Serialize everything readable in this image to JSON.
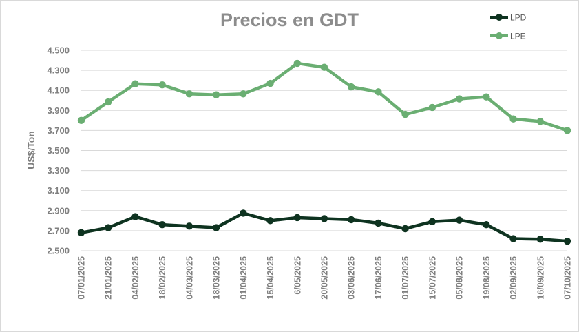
{
  "chart_data": {
    "type": "line",
    "title": "Precios en GDT",
    "xlabel": "",
    "ylabel": "US$/Ton",
    "ylim": [
      2500,
      4500
    ],
    "yticks": [
      2500,
      2700,
      2900,
      3100,
      3300,
      3500,
      3700,
      3900,
      4100,
      4300,
      4500
    ],
    "ytick_labels": [
      "2.500",
      "2.700",
      "2.900",
      "3.100",
      "3.300",
      "3.500",
      "3.700",
      "3.900",
      "4.100",
      "4.300",
      "4.500"
    ],
    "grid": "horizontal",
    "legend_position": "top-right",
    "categories": [
      "07/01/2025",
      "21/01/2025",
      "04/02/2025",
      "18/02/2025",
      "04/03/2025",
      "18/03/2025",
      "01/04/2025",
      "15/04/2025",
      "6/05/2025",
      "20/05/2025",
      "03/06/2025",
      "17/06/2025",
      "01/07/2025",
      "15/07/2025",
      "05/08/2025",
      "19/08/2025",
      "02/09/2025",
      "16/09/2025",
      "07/10/2025"
    ],
    "series": [
      {
        "name": "LPD",
        "color": "#0e3320",
        "values": [
          2680,
          2730,
          2840,
          2760,
          2745,
          2730,
          2875,
          2800,
          2830,
          2820,
          2810,
          2775,
          2720,
          2790,
          2805,
          2760,
          2620,
          2615,
          2595
        ]
      },
      {
        "name": "LPE",
        "color": "#6aae72",
        "values": [
          3800,
          3985,
          4165,
          4155,
          4065,
          4055,
          4065,
          4170,
          4370,
          4330,
          4135,
          4085,
          3860,
          3930,
          4015,
          4035,
          3815,
          3790,
          3700
        ]
      }
    ]
  }
}
